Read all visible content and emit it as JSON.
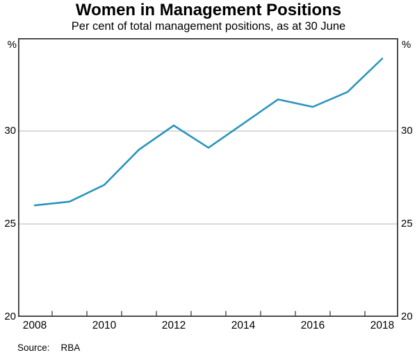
{
  "header": {
    "title": "Women in Management Positions",
    "subtitle": "Per cent of total management positions, as at 30 June"
  },
  "footer": {
    "source_label": "Source:",
    "source_value": "RBA"
  },
  "chart_data": {
    "type": "line",
    "title": "Women in Management Positions",
    "subtitle": "Per cent of total management positions, as at 30 June",
    "x": [
      2008,
      2009,
      2010,
      2011,
      2012,
      2013,
      2014,
      2015,
      2016,
      2017,
      2018
    ],
    "series": [
      {
        "name": "Women in management positions",
        "values": [
          26.0,
          26.2,
          27.1,
          29.0,
          30.3,
          29.1,
          30.4,
          31.7,
          31.3,
          32.1,
          33.9
        ]
      }
    ],
    "ylim": [
      20,
      35
    ],
    "yticks": [
      20,
      25,
      30
    ],
    "gridlines_at": [
      25,
      30
    ],
    "xtick_labels": [
      "2008",
      "2010",
      "2012",
      "2014",
      "2016",
      "2018"
    ],
    "y_unit": "%",
    "legend": "none",
    "grid": "horizontal-only",
    "line_color": "#2994bd",
    "grid_color": "#b5b5b5",
    "axis_color": "#3a3a3a"
  }
}
